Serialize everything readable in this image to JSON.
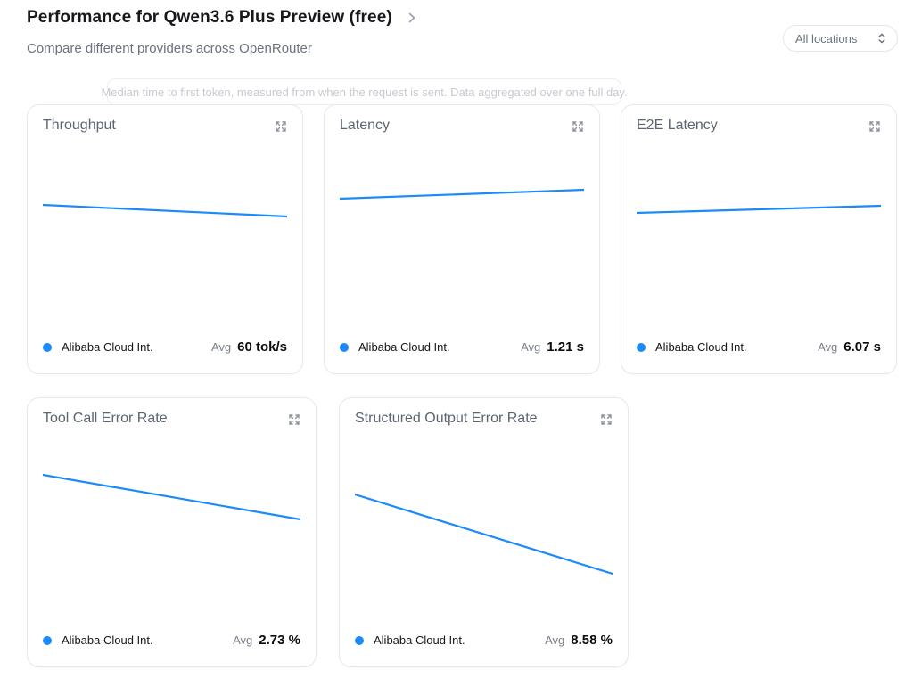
{
  "header": {
    "title": "Performance for Qwen3.6 Plus Preview (free)",
    "subtitle": "Compare different providers across OpenRouter",
    "location_filter": {
      "value": "All locations"
    }
  },
  "tooltip": {
    "text": "Median time to first token, measured from when the request is sent. Data aggregated over one full day."
  },
  "legend": {
    "avg_label": "Avg",
    "provider": "Alibaba Cloud Int."
  },
  "colors": {
    "accent": "#1b8afa",
    "card_border": "#e6e8ec",
    "muted_text": "#6b7280"
  },
  "chart_data": [
    {
      "type": "line",
      "title": "Throughput",
      "ylabel": "tokens per second",
      "legend_position": "bottom",
      "grid": false,
      "series": [
        {
          "name": "Alibaba Cloud Int.",
          "values": [
            63,
            57
          ]
        }
      ],
      "avg": 60,
      "unit": "tok/s",
      "avg_display": "60 tok/s",
      "trend": "slightly decreasing straight line over one full day",
      "points_norm": [
        [
          0,
          0.27
        ],
        [
          1,
          0.335
        ]
      ]
    },
    {
      "type": "line",
      "title": "Latency",
      "ylabel": "seconds",
      "legend_position": "bottom",
      "grid": false,
      "series": [
        {
          "name": "Alibaba Cloud Int.",
          "values": [
            1.18,
            1.25
          ]
        }
      ],
      "avg": 1.21,
      "unit": "s",
      "avg_display": "1.21 s",
      "trend": "slightly increasing straight line over one full day",
      "points_norm": [
        [
          0,
          0.235
        ],
        [
          1,
          0.185
        ]
      ]
    },
    {
      "type": "line",
      "title": "E2E Latency",
      "ylabel": "seconds",
      "legend_position": "bottom",
      "grid": false,
      "series": [
        {
          "name": "Alibaba Cloud Int.",
          "values": [
            5.95,
            6.2
          ]
        }
      ],
      "avg": 6.07,
      "unit": "s",
      "avg_display": "6.07 s",
      "trend": "slightly increasing straight line over one full day",
      "points_norm": [
        [
          0,
          0.315
        ],
        [
          1,
          0.275
        ]
      ]
    },
    {
      "type": "line",
      "title": "Tool Call Error Rate",
      "ylabel": "percent",
      "legend_position": "bottom",
      "grid": false,
      "series": [
        {
          "name": "Alibaba Cloud Int.",
          "values": [
            3.5,
            2.0
          ]
        }
      ],
      "avg": 2.73,
      "unit": "%",
      "avg_display": "2.73 %",
      "trend": "decreasing straight line over one full day",
      "points_norm": [
        [
          0,
          0.14
        ],
        [
          1,
          0.39
        ]
      ]
    },
    {
      "type": "line",
      "title": "Structured Output Error Rate",
      "ylabel": "percent",
      "legend_position": "bottom",
      "grid": false,
      "series": [
        {
          "name": "Alibaba Cloud Int.",
          "values": [
            11.0,
            6.2
          ]
        }
      ],
      "avg": 8.58,
      "unit": "%",
      "avg_display": "8.58 %",
      "trend": "decreasing straight line over one full day",
      "points_norm": [
        [
          0,
          0.25
        ],
        [
          1,
          0.695
        ]
      ]
    }
  ]
}
